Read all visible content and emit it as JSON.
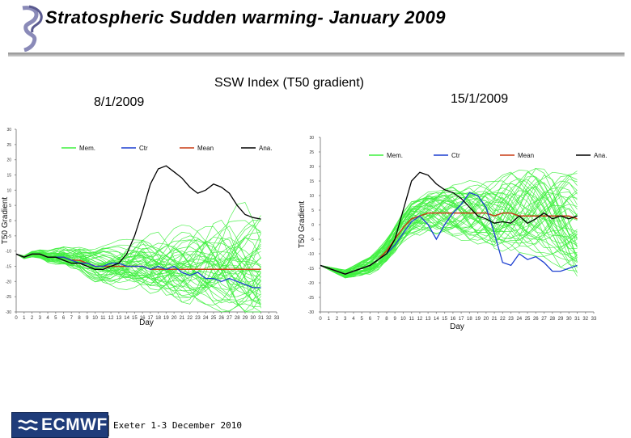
{
  "header": {
    "title": "Stratospheric Sudden warming- January 2009"
  },
  "chart_heading": "SSW Index (T50 gradient)",
  "footer": {
    "logo_text": "ECMWF",
    "event": "Exeter 1-3 December 2010"
  },
  "colors": {
    "members": "#3ef03e",
    "control": "#1c3fd0",
    "mean": "#c83c14",
    "analysis": "#000000"
  },
  "chart_data": [
    {
      "type": "line",
      "title": "8/1/2009",
      "xlabel": "Day",
      "ylabel": "T50 Gradient",
      "xlim": [
        0,
        33
      ],
      "ylim": [
        -30,
        30
      ],
      "x_ticks": [
        0,
        1,
        2,
        3,
        4,
        5,
        6,
        7,
        8,
        9,
        10,
        11,
        12,
        13,
        14,
        15,
        16,
        17,
        18,
        19,
        20,
        21,
        22,
        23,
        24,
        25,
        26,
        27,
        28,
        29,
        30,
        31,
        32,
        33
      ],
      "y_ticks": [
        -30,
        -25,
        -20,
        -15,
        -10,
        -5,
        0,
        5,
        10,
        15,
        20,
        25,
        30
      ],
      "legend": [
        "Mem.",
        "Ctr",
        "Mean",
        "Ana."
      ],
      "member_count": 50,
      "series": [
        {
          "name": "Ana.",
          "x": [
            0,
            1,
            2,
            3,
            4,
            5,
            6,
            7,
            8,
            9,
            10,
            11,
            12,
            13,
            14,
            15,
            16,
            17,
            18,
            19,
            20,
            21,
            22,
            23,
            24,
            25,
            26,
            27,
            28,
            29,
            30,
            31
          ],
          "values": [
            -11,
            -12,
            -11,
            -11,
            -12,
            -12,
            -13,
            -14,
            -14,
            -15,
            -16,
            -16,
            -15,
            -14,
            -11,
            -5,
            3,
            12,
            17,
            18,
            16,
            14,
            11,
            9,
            10,
            12,
            11,
            9,
            5,
            2,
            1,
            0.5
          ]
        },
        {
          "name": "Ctr",
          "x": [
            0,
            1,
            2,
            3,
            4,
            5,
            6,
            7,
            8,
            9,
            10,
            11,
            12,
            13,
            14,
            15,
            16,
            17,
            18,
            19,
            20,
            21,
            22,
            23,
            24,
            25,
            26,
            27,
            28,
            29,
            30,
            31
          ],
          "values": [
            -11,
            -12,
            -11,
            -11,
            -12,
            -12,
            -12,
            -13,
            -14,
            -14,
            -15,
            -15,
            -14,
            -14,
            -15,
            -15,
            -15,
            -16,
            -15,
            -16,
            -15,
            -17,
            -18,
            -17,
            -19,
            -19,
            -20,
            -19,
            -20,
            -21,
            -22,
            -22
          ]
        },
        {
          "name": "Mean",
          "x": [
            0,
            1,
            2,
            3,
            4,
            5,
            6,
            7,
            8,
            9,
            10,
            11,
            12,
            13,
            14,
            15,
            16,
            17,
            18,
            19,
            20,
            21,
            22,
            23,
            24,
            25,
            26,
            27,
            28,
            29,
            30,
            31
          ],
          "values": [
            -11,
            -12,
            -11,
            -11,
            -12,
            -12,
            -12,
            -13,
            -13,
            -14,
            -15,
            -15,
            -15,
            -15,
            -15,
            -15,
            -15,
            -16,
            -16,
            -16,
            -16,
            -16,
            -16,
            -16,
            -16,
            -16,
            -16,
            -16,
            -16,
            -16,
            -16,
            -16
          ]
        }
      ]
    },
    {
      "type": "line",
      "title": "15/1/2009",
      "xlabel": "Day",
      "ylabel": "T50 Gradient",
      "xlim": [
        0,
        33
      ],
      "ylim": [
        -30,
        30
      ],
      "x_ticks": [
        0,
        1,
        2,
        3,
        4,
        5,
        6,
        7,
        8,
        9,
        10,
        11,
        12,
        13,
        14,
        15,
        16,
        17,
        18,
        19,
        20,
        21,
        22,
        23,
        24,
        25,
        26,
        27,
        28,
        29,
        30,
        31,
        32,
        33
      ],
      "y_ticks": [
        -30,
        -25,
        -20,
        -15,
        -10,
        -5,
        0,
        5,
        10,
        15,
        20,
        25,
        30
      ],
      "legend": [
        "Mem.",
        "Ctr",
        "Mean",
        "Ana."
      ],
      "member_count": 50,
      "series": [
        {
          "name": "Ana.",
          "x": [
            0,
            1,
            2,
            3,
            4,
            5,
            6,
            7,
            8,
            9,
            10,
            11,
            12,
            13,
            14,
            15,
            16,
            17,
            18,
            19,
            20,
            21,
            22,
            23,
            24,
            25,
            26,
            27,
            28,
            29,
            30,
            31
          ],
          "values": [
            -14,
            -15,
            -16,
            -17,
            -16,
            -15,
            -14,
            -12,
            -10,
            -5,
            5,
            15,
            18,
            17,
            14,
            12,
            11,
            9,
            6,
            3,
            2,
            0.5,
            1,
            0.5,
            3,
            0.5,
            2,
            4,
            2,
            3,
            2,
            3
          ]
        },
        {
          "name": "Ctr",
          "x": [
            0,
            1,
            2,
            3,
            4,
            5,
            6,
            7,
            8,
            9,
            10,
            11,
            12,
            13,
            14,
            15,
            16,
            17,
            18,
            19,
            20,
            21,
            22,
            23,
            24,
            25,
            26,
            27,
            28,
            29,
            30,
            31
          ],
          "values": [
            -14,
            -15,
            -16,
            -17,
            -16,
            -15,
            -14,
            -12,
            -10,
            -7,
            -3,
            1,
            3,
            0,
            -5,
            0,
            4,
            7,
            11,
            10,
            6,
            -3,
            -13,
            -14,
            -10,
            -12,
            -11,
            -13,
            -16,
            -16,
            -15,
            -14
          ]
        },
        {
          "name": "Mean",
          "x": [
            0,
            1,
            2,
            3,
            4,
            5,
            6,
            7,
            8,
            9,
            10,
            11,
            12,
            13,
            14,
            15,
            16,
            17,
            18,
            19,
            20,
            21,
            22,
            23,
            24,
            25,
            26,
            27,
            28,
            29,
            30,
            31
          ],
          "values": [
            -14,
            -15,
            -16,
            -17,
            -16,
            -15,
            -14,
            -12,
            -9,
            -5,
            -1,
            2,
            3,
            4,
            4,
            4,
            4,
            4,
            4,
            4,
            4,
            3,
            4,
            4,
            3,
            3,
            3,
            3,
            3,
            3,
            3,
            2
          ]
        }
      ]
    }
  ]
}
